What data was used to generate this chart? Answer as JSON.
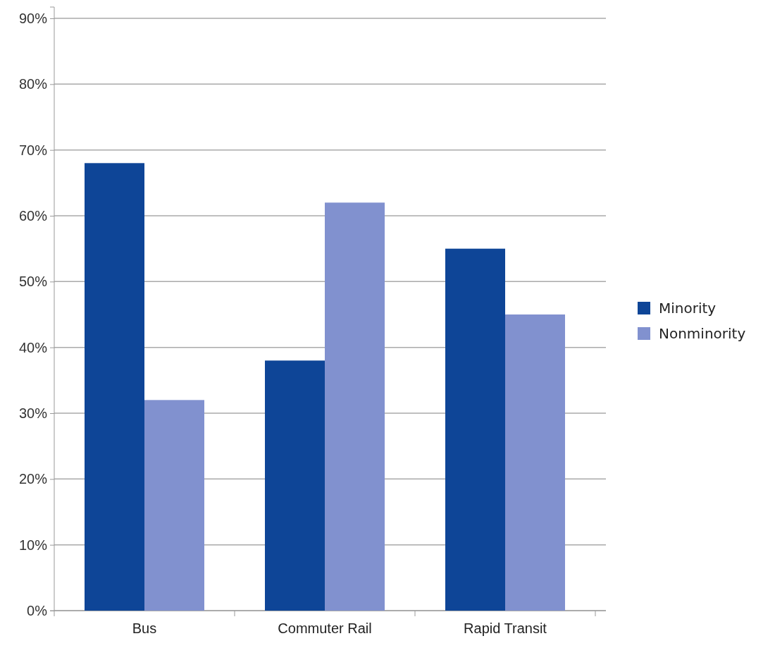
{
  "chart_data": {
    "type": "bar",
    "categories": [
      "Bus",
      "Commuter Rail",
      "Rapid Transit"
    ],
    "series": [
      {
        "name": "Minority",
        "color": "#0e4597",
        "values": [
          68,
          38,
          55
        ]
      },
      {
        "name": "Nonminority",
        "color": "#8191cf",
        "values": [
          32,
          62,
          45
        ]
      }
    ],
    "ylim": [
      0,
      90
    ],
    "yticks": [
      {
        "value": 0,
        "label": "0%"
      },
      {
        "value": 10,
        "label": "10%"
      },
      {
        "value": 20,
        "label": "20%"
      },
      {
        "value": 30,
        "label": "30%"
      },
      {
        "value": 40,
        "label": "40%"
      },
      {
        "value": 50,
        "label": "50%"
      },
      {
        "value": 60,
        "label": "60%"
      },
      {
        "value": 70,
        "label": "70%"
      },
      {
        "value": 80,
        "label": "80%"
      },
      {
        "value": 90,
        "label": "90%"
      }
    ],
    "grid": "y",
    "legend": "right"
  }
}
